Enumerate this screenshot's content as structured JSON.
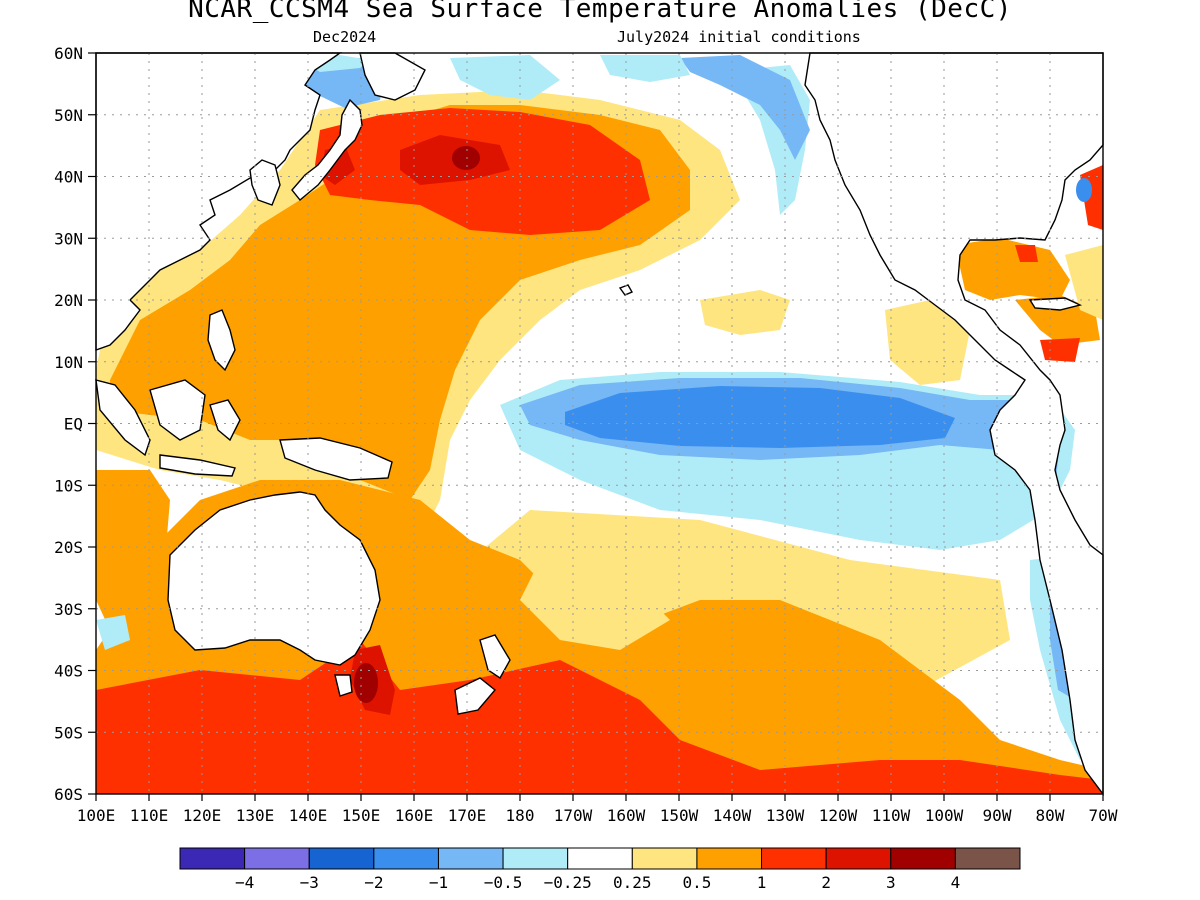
{
  "title": "NCAR_CCSM4 Sea Surface Temperature Anomalies (DecC)",
  "subtitle_left": "Dec2024",
  "subtitle_right": "July2024 initial conditions",
  "lat_labels": [
    "60N",
    "50N",
    "40N",
    "30N",
    "20N",
    "10N",
    "EQ",
    "10S",
    "20S",
    "30S",
    "40S",
    "50S",
    "60S"
  ],
  "lon_labels": [
    "100E",
    "110E",
    "120E",
    "130E",
    "140E",
    "150E",
    "160E",
    "170E",
    "180",
    "170W",
    "160W",
    "150W",
    "140W",
    "130W",
    "120W",
    "110W",
    "100W",
    "90W",
    "80W",
    "70W"
  ],
  "colorbar": {
    "colors": [
      "#3b28b4",
      "#7c6fe6",
      "#1663d2",
      "#3a8fee",
      "#76b7f5",
      "#b0ecf8",
      "#ffffff",
      "#fee57f",
      "#fea100",
      "#fe3000",
      "#dd1300",
      "#a10000",
      "#7a5448"
    ],
    "labels": [
      "−4",
      "−3",
      "−2",
      "−1",
      "−0.5",
      "−0.25",
      "0.25",
      "0.5",
      "1",
      "2",
      "3",
      "4"
    ]
  },
  "colors": {
    "neutral": "#ffffff",
    "warm_light": "#fee57f",
    "warm": "#fea100",
    "warm_strong": "#fe3000",
    "hot": "#dd1300",
    "hottest": "#a10000",
    "cool_light": "#b0ecf8",
    "cool": "#76b7f5",
    "cool_strong": "#3a8fee",
    "coast": "#000000",
    "grid": "#9a9a9a"
  }
}
